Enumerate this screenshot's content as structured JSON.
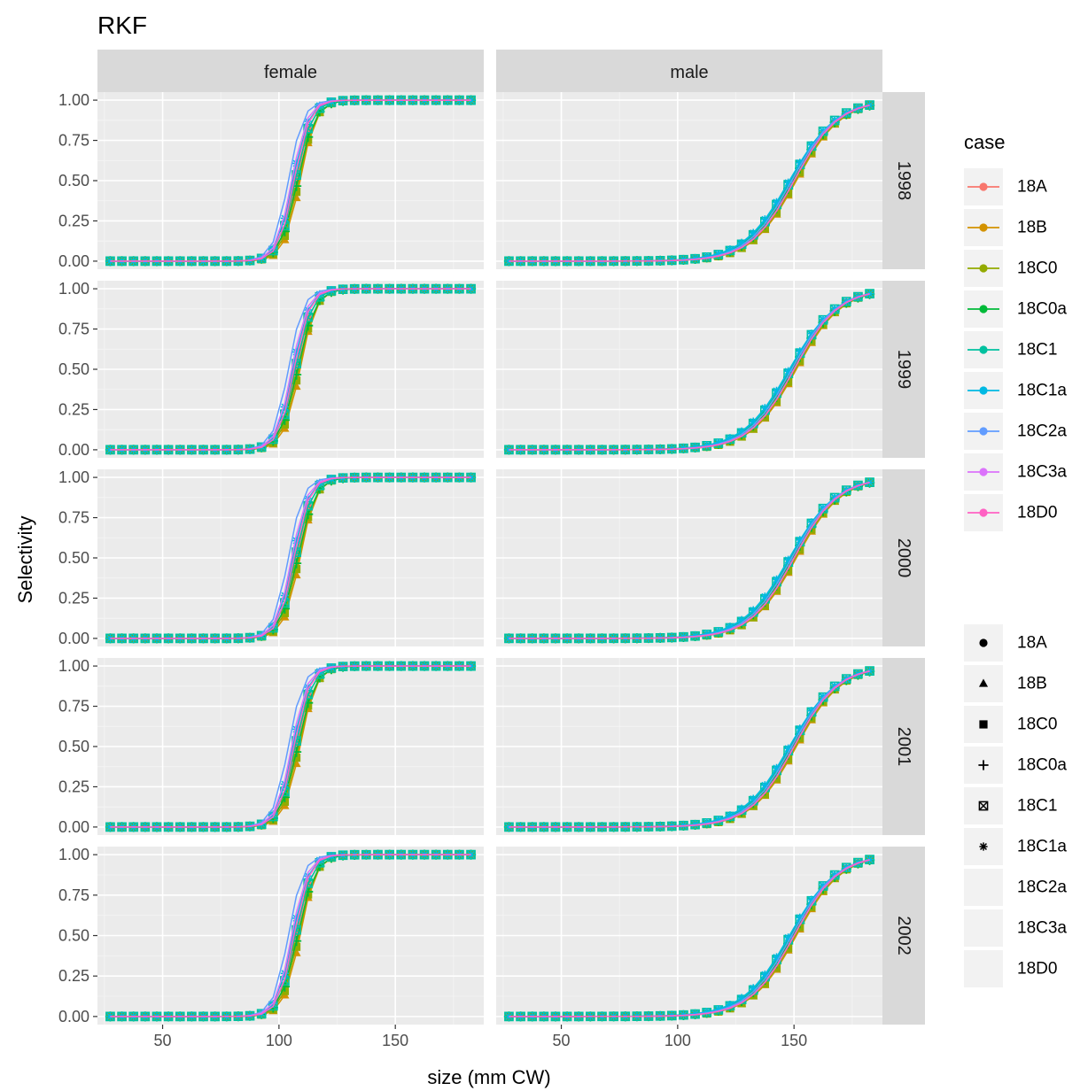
{
  "chart_data": {
    "type": "line",
    "title": "RKF",
    "xlabel": "size (mm CW)",
    "ylabel": "Selectivity",
    "facet_columns": [
      "female",
      "male"
    ],
    "facet_rows": [
      "1998",
      "1999",
      "2000",
      "2001",
      "2002"
    ],
    "xlim": [
      22,
      188
    ],
    "ylim": [
      -0.05,
      1.05
    ],
    "x_ticks": [
      50,
      100,
      150
    ],
    "y_ticks": [
      "0.00",
      "0.25",
      "0.50",
      "0.75",
      "1.00"
    ],
    "x": [
      27.5,
      32.5,
      37.5,
      42.5,
      47.5,
      52.5,
      57.5,
      62.5,
      67.5,
      72.5,
      77.5,
      82.5,
      87.5,
      92.5,
      97.5,
      102.5,
      107.5,
      112.5,
      117.5,
      122.5,
      127.5,
      132.5,
      137.5,
      142.5,
      147.5,
      152.5,
      157.5,
      162.5,
      167.5,
      172.5,
      177.5,
      182.5
    ],
    "curve_params": {
      "female": {
        "18A": {
          "s50": 107.5,
          "slope": 0.3
        },
        "18B": {
          "s50": 109.0,
          "slope": 0.29
        },
        "18C0": {
          "s50": 108.5,
          "slope": 0.28
        },
        "18C0a": {
          "s50": 108.0,
          "slope": 0.27
        },
        "18C1": {
          "s50": 107.0,
          "slope": 0.28
        },
        "18C1a": {
          "s50": 106.0,
          "slope": 0.29
        },
        "18C2a": {
          "s50": 104.0,
          "slope": 0.31
        },
        "18C3a": {
          "s50": 105.5,
          "slope": 0.3
        },
        "18D0": {
          "s50": 106.5,
          "slope": 0.3
        }
      },
      "male": {
        "18A": {
          "s50": 150.0,
          "slope": 0.105
        },
        "18B": {
          "s50": 151.0,
          "slope": 0.105
        },
        "18C0": {
          "s50": 150.5,
          "slope": 0.105
        },
        "18C0a": {
          "s50": 149.5,
          "slope": 0.102
        },
        "18C1": {
          "s50": 148.5,
          "slope": 0.102
        },
        "18C1a": {
          "s50": 148.0,
          "slope": 0.1
        },
        "18C2a": {
          "s50": 149.0,
          "slope": 0.104
        },
        "18C3a": {
          "s50": 150.0,
          "slope": 0.105
        },
        "18D0": {
          "s50": 150.0,
          "slope": 0.106
        }
      }
    },
    "series": [
      {
        "name": "18A",
        "color": "#F8766D",
        "shape": "circle"
      },
      {
        "name": "18B",
        "color": "#D39200",
        "shape": "triangle"
      },
      {
        "name": "18C0",
        "color": "#93AA00",
        "shape": "square"
      },
      {
        "name": "18C0a",
        "color": "#00BA38",
        "shape": "plus"
      },
      {
        "name": "18C1",
        "color": "#00C19F",
        "shape": "boxed-x"
      },
      {
        "name": "18C1a",
        "color": "#00B9E3",
        "shape": "asterisk"
      },
      {
        "name": "18C2a",
        "color": "#619CFF",
        "shape": "none"
      },
      {
        "name": "18C3a",
        "color": "#DB72FB",
        "shape": "none"
      },
      {
        "name": "18D0",
        "color": "#FF61C3",
        "shape": "none"
      }
    ],
    "grid": true,
    "panel_background": "#EBEBEB",
    "strip_background": "#D9D9D9",
    "legend": {
      "position": "right",
      "color_title": "case",
      "color_items": [
        "18A",
        "18B",
        "18C0",
        "18C0a",
        "18C1",
        "18C1a",
        "18C2a",
        "18C3a",
        "18D0"
      ],
      "shape_items": [
        "18A",
        "18B",
        "18C0",
        "18C0a",
        "18C1",
        "18C1a",
        "18C2a",
        "18C3a",
        "18D0"
      ]
    }
  }
}
